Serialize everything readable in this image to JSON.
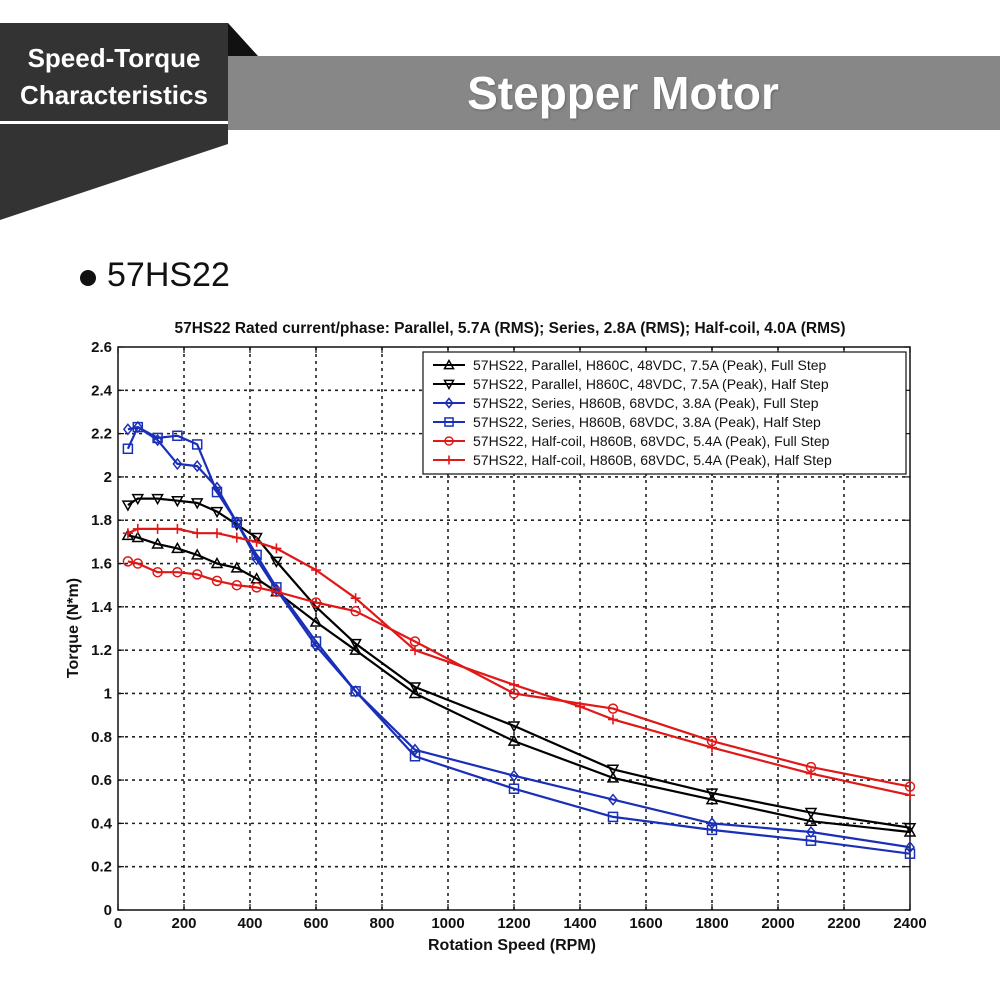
{
  "header": {
    "section_tag_line1": "Speed-Torque",
    "section_tag_line2": "Characteristics",
    "title": "Stepper Motor",
    "tag_color": "#333333",
    "bar_color": "#878787"
  },
  "model": {
    "bullet_icon": "bullet-dot",
    "name": "57HS22"
  },
  "chart_data": {
    "type": "line",
    "title": "57HS22 Rated current/phase: Parallel, 5.7A (RMS); Series, 2.8A (RMS); Half-coil, 4.0A (RMS)",
    "xlabel": "Rotation Speed (RPM)",
    "ylabel": "Torque (N*m)",
    "xlim": [
      0,
      2400
    ],
    "ylim": [
      0,
      2.6
    ],
    "xticks": [
      0,
      200,
      400,
      600,
      800,
      1000,
      1200,
      1400,
      1600,
      1800,
      2000,
      2200,
      2400
    ],
    "yticks": [
      0,
      0.2,
      0.4,
      0.6,
      0.8,
      1,
      1.2,
      1.4,
      1.6,
      1.8,
      2,
      2.2,
      2.4,
      2.6
    ],
    "grid": true,
    "legend_position": "top-right",
    "series": [
      {
        "name": "57HS22, Parallel, H860C, 48VDC, 7.5A (Peak), Full Step",
        "color": "#000000",
        "marker": "triangle-up",
        "x": [
          30,
          60,
          120,
          180,
          240,
          300,
          360,
          420,
          480,
          600,
          720,
          900,
          1200,
          1500,
          1800,
          2100,
          2400
        ],
        "y": [
          1.73,
          1.72,
          1.69,
          1.67,
          1.64,
          1.6,
          1.58,
          1.53,
          1.47,
          1.33,
          1.2,
          1.0,
          0.78,
          0.61,
          0.51,
          0.41,
          0.36
        ]
      },
      {
        "name": "57HS22, Parallel, H860C, 48VDC, 7.5A (Peak), Half Step",
        "color": "#000000",
        "marker": "triangle-down",
        "x": [
          30,
          60,
          120,
          180,
          240,
          300,
          360,
          420,
          480,
          600,
          720,
          900,
          1200,
          1500,
          1800,
          2100,
          2400
        ],
        "y": [
          1.87,
          1.9,
          1.9,
          1.89,
          1.88,
          1.84,
          1.78,
          1.72,
          1.61,
          1.4,
          1.23,
          1.03,
          0.85,
          0.65,
          0.54,
          0.45,
          0.38
        ]
      },
      {
        "name": "57HS22, Series, H860B, 68VDC, 3.8A (Peak), Full Step",
        "color": "#1a2fb8",
        "marker": "diamond",
        "x": [
          30,
          60,
          120,
          180,
          240,
          300,
          360,
          420,
          480,
          600,
          720,
          900,
          1200,
          1500,
          1800,
          2100,
          2400
        ],
        "y": [
          2.22,
          2.23,
          2.17,
          2.06,
          2.05,
          1.95,
          1.79,
          1.62,
          1.48,
          1.22,
          1.01,
          0.74,
          0.62,
          0.51,
          0.4,
          0.36,
          0.29
        ]
      },
      {
        "name": "57HS22, Series, H860B, 68VDC, 3.8A (Peak), Half Step",
        "color": "#1a2fb8",
        "marker": "square",
        "x": [
          30,
          60,
          120,
          180,
          240,
          300,
          360,
          420,
          480,
          600,
          720,
          900,
          1200,
          1500,
          1800,
          2100,
          2400
        ],
        "y": [
          2.13,
          2.23,
          2.18,
          2.19,
          2.15,
          1.93,
          1.79,
          1.64,
          1.49,
          1.24,
          1.01,
          0.71,
          0.56,
          0.43,
          0.37,
          0.32,
          0.26
        ]
      },
      {
        "name": "57HS22, Half-coil, H860B, 68VDC, 5.4A (Peak), Full Step",
        "color": "#e01818",
        "marker": "circle",
        "x": [
          30,
          60,
          120,
          180,
          240,
          300,
          360,
          420,
          480,
          600,
          720,
          900,
          1200,
          1500,
          1800,
          2100,
          2400
        ],
        "y": [
          1.61,
          1.6,
          1.56,
          1.56,
          1.55,
          1.52,
          1.5,
          1.49,
          1.47,
          1.42,
          1.38,
          1.24,
          1.0,
          0.93,
          0.78,
          0.66,
          0.57
        ]
      },
      {
        "name": "57HS22, Half-coil, H860B, 68VDC, 5.4A (Peak), Half Step",
        "color": "#e01818",
        "marker": "plus",
        "x": [
          30,
          60,
          120,
          180,
          240,
          300,
          360,
          420,
          480,
          600,
          720,
          900,
          1200,
          1400,
          1500,
          1800,
          2100,
          2400
        ],
        "y": [
          1.74,
          1.76,
          1.76,
          1.76,
          1.74,
          1.74,
          1.72,
          1.7,
          1.67,
          1.57,
          1.44,
          1.2,
          1.04,
          0.94,
          0.88,
          0.75,
          0.63,
          0.53
        ]
      }
    ]
  }
}
